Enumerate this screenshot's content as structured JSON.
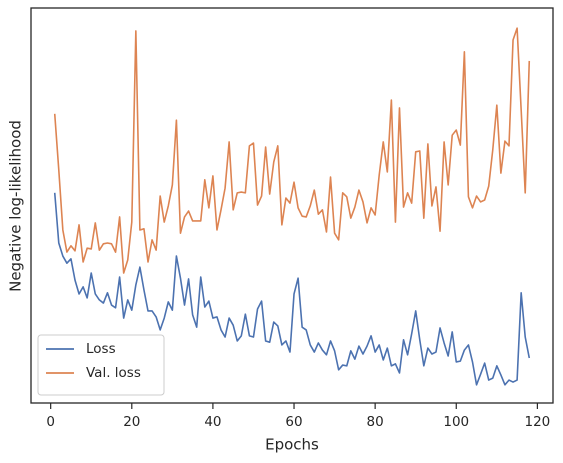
{
  "chart_data": {
    "type": "line",
    "xlabel": "Epochs",
    "ylabel": "Negative log-likelihood",
    "x": [
      1,
      2,
      3,
      4,
      5,
      6,
      7,
      8,
      9,
      10,
      11,
      12,
      13,
      14,
      15,
      16,
      17,
      18,
      19,
      20,
      21,
      22,
      23,
      24,
      25,
      26,
      27,
      28,
      29,
      30,
      31,
      32,
      33,
      34,
      35,
      36,
      37,
      38,
      39,
      40,
      41,
      42,
      43,
      44,
      45,
      46,
      47,
      48,
      49,
      50,
      51,
      52,
      53,
      54,
      55,
      56,
      57,
      58,
      59,
      60,
      61,
      62,
      63,
      64,
      65,
      66,
      67,
      68,
      69,
      70,
      71,
      72,
      73,
      74,
      75,
      76,
      77,
      78,
      79,
      80,
      81,
      82,
      83,
      84,
      85,
      86,
      87,
      88,
      89,
      90,
      91,
      92,
      93,
      94,
      95,
      96,
      97,
      98,
      99,
      100,
      101,
      102,
      103,
      104,
      105,
      106,
      107,
      108,
      109,
      110,
      111,
      112,
      113,
      114,
      115,
      116,
      117,
      118
    ],
    "series": [
      {
        "name": "Loss",
        "color": "#4c72b0",
        "values": [
          53.2,
          40.5,
          37.2,
          35.4,
          36.5,
          31.1,
          27.6,
          29.4,
          26.6,
          32.9,
          27.6,
          26.1,
          25.3,
          27.9,
          24.8,
          24.1,
          31.9,
          21.5,
          26.1,
          23.5,
          29.9,
          34.4,
          28.6,
          23.3,
          23.3,
          21.8,
          18.5,
          21.5,
          25.6,
          23.5,
          37.2,
          31.6,
          24.8,
          31.4,
          22.3,
          19.2,
          31.9,
          24.3,
          25.8,
          21.5,
          21.8,
          18.5,
          16.7,
          21.5,
          19.7,
          15.7,
          17.0,
          22.5,
          17.0,
          16.7,
          23.8,
          25.8,
          15.7,
          15.4,
          20.5,
          19.5,
          14.7,
          15.7,
          12.9,
          27.6,
          31.6,
          19.2,
          18.5,
          14.7,
          12.9,
          15.2,
          13.4,
          12.2,
          15.7,
          13.2,
          8.4,
          9.6,
          9.4,
          13.2,
          11.1,
          14.4,
          12.4,
          14.4,
          17.0,
          12.9,
          14.7,
          10.9,
          13.9,
          9.4,
          9.9,
          7.6,
          16.0,
          12.2,
          17.5,
          23.3,
          16.0,
          9.4,
          13.9,
          12.4,
          12.9,
          19.0,
          15.2,
          11.9,
          18.0,
          10.4,
          10.6,
          13.4,
          14.7,
          10.4,
          4.6,
          7.3,
          10.1,
          5.8,
          6.3,
          9.4,
          7.1,
          4.6,
          5.8,
          5.3,
          5.8,
          27.9,
          16.7,
          11.4
        ]
      },
      {
        "name": "Val. loss",
        "color": "#dd8452",
        "values": [
          73.2,
          59.0,
          43.8,
          38.2,
          39.8,
          38.5,
          45.1,
          35.7,
          39.2,
          39.0,
          45.6,
          38.7,
          40.3,
          40.5,
          40.3,
          38.2,
          47.1,
          32.9,
          36.2,
          45.8,
          94.2,
          43.8,
          44.1,
          35.7,
          41.3,
          38.7,
          52.4,
          45.8,
          49.9,
          55.2,
          71.6,
          43.0,
          47.1,
          48.6,
          46.1,
          46.1,
          46.1,
          56.5,
          49.4,
          57.5,
          43.8,
          48.9,
          54.4,
          66.1,
          48.9,
          53.2,
          53.4,
          53.2,
          65.1,
          65.8,
          50.1,
          52.4,
          64.8,
          52.9,
          61.0,
          65.1,
          45.1,
          51.9,
          50.6,
          55.9,
          49.4,
          47.3,
          47.1,
          49.9,
          53.9,
          47.8,
          48.9,
          43.3,
          57.2,
          43.0,
          41.3,
          53.2,
          52.2,
          46.8,
          49.6,
          53.9,
          50.9,
          45.6,
          49.4,
          47.6,
          57.7,
          66.1,
          58.5,
          76.7,
          45.8,
          74.7,
          49.6,
          53.2,
          50.6,
          63.6,
          63.8,
          46.8,
          65.6,
          49.9,
          54.7,
          43.5,
          66.1,
          55.2,
          67.8,
          69.1,
          65.3,
          88.9,
          52.2,
          49.4,
          52.4,
          50.9,
          51.4,
          54.9,
          64.1,
          75.4,
          58.2,
          66.3,
          65.1,
          91.9,
          94.9,
          74.2,
          53.2,
          86.6
        ]
      }
    ],
    "xlim": [
      -4.85,
      123.85
    ],
    "xticks": [
      0,
      20,
      40,
      60,
      80,
      100,
      120
    ],
    "ylim": [
      0,
      100
    ],
    "grid": false,
    "legend": "lower left"
  }
}
